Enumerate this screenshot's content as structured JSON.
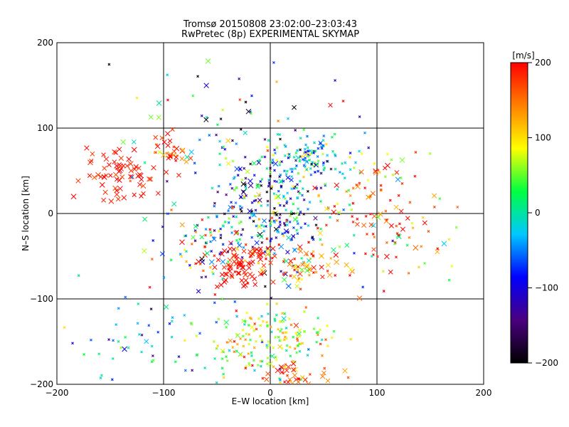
{
  "chart_data": {
    "type": "scatter",
    "title": "Tromsø 20150808 23:02:00–23:03:43",
    "subtitle": "RwPretec (8p) EXPERIMENTAL SKYMAP",
    "xlabel": "E–W location [km]",
    "ylabel": "N–S location [km]",
    "xlim": [
      -200,
      200
    ],
    "ylim": [
      -200,
      200
    ],
    "x_ticks": [
      -200,
      -100,
      0,
      100,
      200
    ],
    "y_ticks": [
      -200,
      -100,
      0,
      100,
      200
    ],
    "grid": true,
    "colorbar": {
      "label": "[m/s]",
      "range": [
        -200,
        200
      ],
      "ticks": [
        -200,
        -100,
        0,
        100,
        200
      ],
      "colors": [
        "#000000",
        "#4a0080",
        "#0000ff",
        "#00c8ff",
        "#00ff40",
        "#ffff00",
        "#ff8000",
        "#ff0000"
      ]
    },
    "clusters": [
      {
        "cx": -140,
        "cy": 50,
        "sx": 22,
        "sy": 15,
        "n": 70,
        "vmean": 190,
        "vspread": 15,
        "crossFrac": 0.95
      },
      {
        "cx": -95,
        "cy": 70,
        "sx": 12,
        "sy": 12,
        "n": 30,
        "vmean": 170,
        "vspread": 40,
        "crossFrac": 0.8
      },
      {
        "cx": 0,
        "cy": 10,
        "sx": 28,
        "sy": 40,
        "n": 320,
        "vmean": -60,
        "vspread": 90,
        "crossFrac": 0.15
      },
      {
        "cx": 40,
        "cy": 65,
        "sx": 25,
        "sy": 12,
        "n": 110,
        "vmean": -20,
        "vspread": 70,
        "crossFrac": 0.1
      },
      {
        "cx": -25,
        "cy": -60,
        "sx": 14,
        "sy": 15,
        "n": 85,
        "vmean": 195,
        "vspread": 10,
        "crossFrac": 0.9
      },
      {
        "cx": 35,
        "cy": -60,
        "sx": 20,
        "sy": 15,
        "n": 70,
        "vmean": 150,
        "vspread": 60,
        "crossFrac": 0.5
      },
      {
        "cx": 0,
        "cy": -150,
        "sx": 30,
        "sy": 20,
        "n": 170,
        "vmean": 60,
        "vspread": 60,
        "crossFrac": 0.08
      },
      {
        "cx": 20,
        "cy": -190,
        "sx": 25,
        "sy": 10,
        "n": 40,
        "vmean": 160,
        "vspread": 40,
        "crossFrac": 0.6
      },
      {
        "cx": 100,
        "cy": 20,
        "sx": 35,
        "sy": 35,
        "n": 90,
        "vmean": 160,
        "vspread": 80,
        "crossFrac": 0.3
      },
      {
        "cx": 120,
        "cy": -40,
        "sx": 30,
        "sy": 30,
        "n": 40,
        "vmean": 150,
        "vspread": 100,
        "crossFrac": 0.3
      },
      {
        "cx": -60,
        "cy": -40,
        "sx": 30,
        "sy": 30,
        "n": 80,
        "vmean": 20,
        "vspread": 150,
        "crossFrac": 0.2
      },
      {
        "cx": -110,
        "cy": -150,
        "sx": 40,
        "sy": 30,
        "n": 60,
        "vmean": -20,
        "vspread": 60,
        "crossFrac": 0.1
      },
      {
        "cx": -60,
        "cy": 110,
        "sx": 60,
        "sy": 40,
        "n": 40,
        "vmean": 0,
        "vspread": 150,
        "crossFrac": 0.3
      }
    ]
  }
}
